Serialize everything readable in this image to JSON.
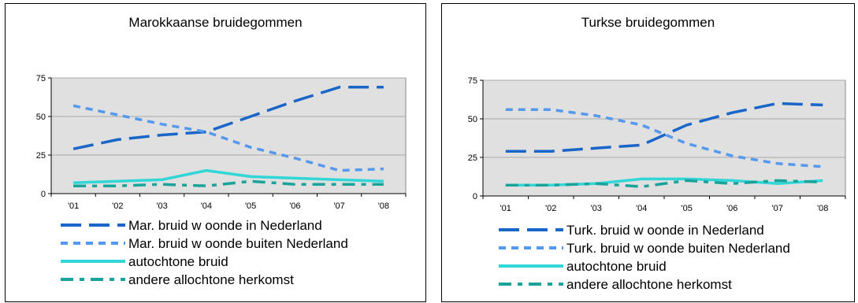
{
  "chart_data": [
    {
      "type": "line",
      "title": "Marokkaanse bruidegommen",
      "categories": [
        "'01",
        "'02",
        "'03",
        "'04",
        "'05",
        "'06",
        "'07",
        "'08"
      ],
      "ylim": [
        0,
        75
      ],
      "yticks": [
        "0",
        "25",
        "50",
        "75"
      ],
      "grid": true,
      "legend_position": "bottom",
      "series": [
        {
          "name": "Mar. bruid w oonde in Nederland",
          "values": [
            29,
            35,
            38,
            40,
            50,
            60,
            69,
            69
          ],
          "color": "#1A65C8",
          "dash": "long"
        },
        {
          "name": "Mar. bruid w oonde buiten Nederland",
          "values": [
            57,
            51,
            45,
            40,
            30,
            23,
            15,
            16
          ],
          "color": "#5599EE",
          "dash": "short"
        },
        {
          "name": "autochtone bruid",
          "values": [
            7,
            8,
            9,
            15,
            11,
            10,
            9,
            8
          ],
          "color": "#33D6D6",
          "dash": "solid"
        },
        {
          "name": "andere allochtone herkomst",
          "values": [
            5,
            5,
            6,
            5,
            8,
            6,
            6,
            6
          ],
          "color": "#1AA39A",
          "dash": "long-short"
        }
      ]
    },
    {
      "type": "line",
      "title": "Turkse bruidegommen",
      "categories": [
        "'01",
        "'02",
        "'03",
        "'04",
        "'05",
        "'06",
        "'07",
        "'08"
      ],
      "ylim": [
        0,
        75
      ],
      "yticks": [
        "0",
        "25",
        "50",
        "75"
      ],
      "grid": true,
      "legend_position": "bottom",
      "series": [
        {
          "name": "Turk. bruid w oonde in Nederland",
          "values": [
            29,
            29,
            31,
            33,
            46,
            54,
            60,
            59
          ],
          "color": "#1A65C8",
          "dash": "long"
        },
        {
          "name": "Turk. bruid w oonde buiten Nederland",
          "values": [
            56,
            56,
            52,
            46,
            34,
            26,
            21,
            19
          ],
          "color": "#5599EE",
          "dash": "short"
        },
        {
          "name": "autochtone bruid",
          "values": [
            7,
            7,
            8,
            11,
            11,
            10,
            8,
            10
          ],
          "color": "#33D6D6",
          "dash": "solid"
        },
        {
          "name": "andere allochtone herkomst",
          "values": [
            7,
            7,
            8,
            6,
            10,
            8,
            10,
            9
          ],
          "color": "#1AA39A",
          "dash": "long-short"
        }
      ]
    }
  ]
}
